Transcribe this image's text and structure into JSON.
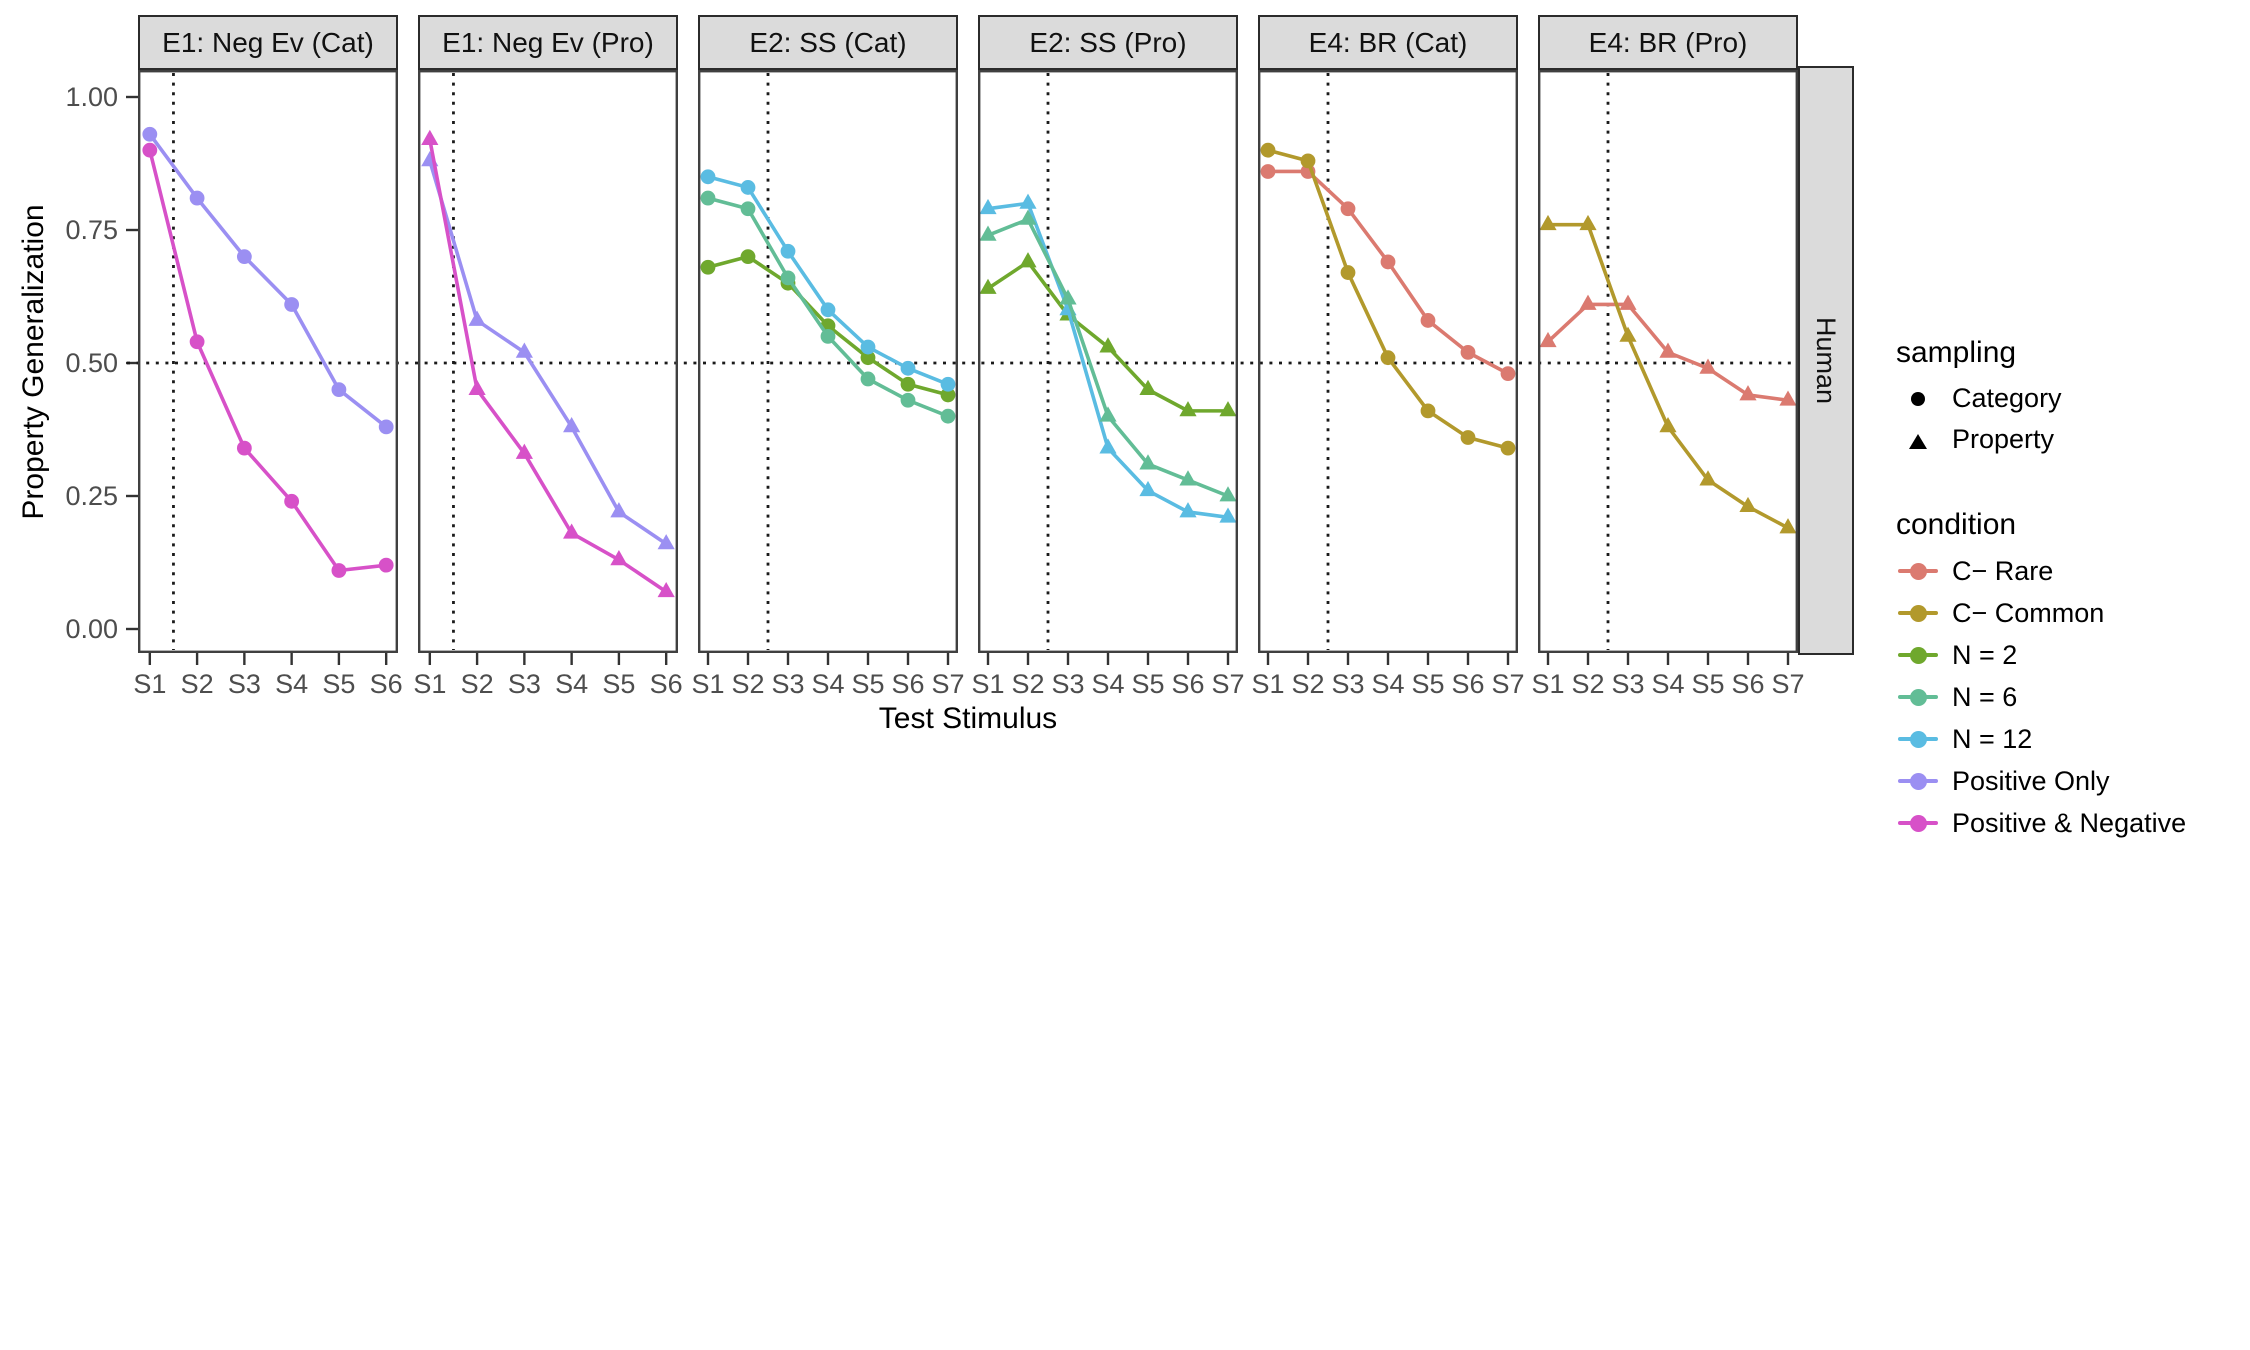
{
  "legend": {
    "sampling": {
      "title": "sampling",
      "items": [
        {
          "label": "Category",
          "marker": "circle"
        },
        {
          "label": "Property",
          "marker": "triangle"
        }
      ]
    },
    "condition": {
      "title": "condition",
      "items": [
        {
          "label": "C− Rare",
          "color": "#DB7A70"
        },
        {
          "label": "C− Common",
          "color": "#B2992C"
        },
        {
          "label": "N = 2",
          "color": "#6FA82D"
        },
        {
          "label": "N = 6",
          "color": "#62BD96"
        },
        {
          "label": "N = 12",
          "color": "#5ABCE2"
        },
        {
          "label": "Positive Only",
          "color": "#9B8FF2"
        },
        {
          "label": "Positive & Negative",
          "color": "#D751C8"
        }
      ]
    }
  },
  "chart_data": {
    "type": "line",
    "xlabel": "Test Stimulus",
    "ylabel": "Property Generalization",
    "facet_row_label": "Human",
    "ylim": [
      0,
      1
    ],
    "yticks": [
      0.0,
      0.25,
      0.5,
      0.75,
      1.0
    ],
    "ytick_labels": [
      "0.00",
      "0.25",
      "0.50",
      "0.75",
      "1.00"
    ],
    "hline": 0.5,
    "grid": false,
    "legend_position": "right",
    "panels": [
      {
        "title": "E1: Neg Ev (Cat)",
        "marker": "circle",
        "categories": [
          "S1",
          "S2",
          "S3",
          "S4",
          "S5",
          "S6"
        ],
        "vline_x": 1.5,
        "series": [
          {
            "condition": "Positive Only",
            "values": [
              0.93,
              0.81,
              0.7,
              0.61,
              0.45,
              0.38
            ]
          },
          {
            "condition": "Positive & Negative",
            "values": [
              0.9,
              0.54,
              0.34,
              0.24,
              0.11,
              0.12
            ]
          }
        ]
      },
      {
        "title": "E1: Neg Ev (Pro)",
        "marker": "triangle",
        "categories": [
          "S1",
          "S2",
          "S3",
          "S4",
          "S5",
          "S6"
        ],
        "vline_x": 1.5,
        "series": [
          {
            "condition": "Positive Only",
            "values": [
              0.88,
              0.58,
              0.52,
              0.38,
              0.22,
              0.16
            ]
          },
          {
            "condition": "Positive & Negative",
            "values": [
              0.92,
              0.45,
              0.33,
              0.18,
              0.13,
              0.07
            ]
          }
        ]
      },
      {
        "title": "E2: SS (Cat)",
        "marker": "circle",
        "categories": [
          "S1",
          "S2",
          "S3",
          "S4",
          "S5",
          "S6",
          "S7"
        ],
        "vline_x": 2.5,
        "series": [
          {
            "condition": "N = 2",
            "values": [
              0.68,
              0.7,
              0.65,
              0.57,
              0.51,
              0.46,
              0.44
            ]
          },
          {
            "condition": "N = 6",
            "values": [
              0.81,
              0.79,
              0.66,
              0.55,
              0.47,
              0.43,
              0.4
            ]
          },
          {
            "condition": "N = 12",
            "values": [
              0.85,
              0.83,
              0.71,
              0.6,
              0.53,
              0.49,
              0.46
            ]
          }
        ]
      },
      {
        "title": "E2: SS (Pro)",
        "marker": "triangle",
        "categories": [
          "S1",
          "S2",
          "S3",
          "S4",
          "S5",
          "S6",
          "S7"
        ],
        "vline_x": 2.5,
        "series": [
          {
            "condition": "N = 2",
            "values": [
              0.64,
              0.69,
              0.59,
              0.53,
              0.45,
              0.41,
              0.41
            ]
          },
          {
            "condition": "N = 12",
            "values": [
              0.79,
              0.8,
              0.6,
              0.34,
              0.26,
              0.22,
              0.21
            ]
          },
          {
            "condition": "N = 6",
            "values": [
              0.74,
              0.77,
              0.62,
              0.4,
              0.31,
              0.28,
              0.25
            ]
          }
        ]
      },
      {
        "title": "E4: BR (Cat)",
        "marker": "circle",
        "categories": [
          "S1",
          "S2",
          "S3",
          "S4",
          "S5",
          "S6",
          "S7"
        ],
        "vline_x": 2.5,
        "series": [
          {
            "condition": "C− Rare",
            "values": [
              0.86,
              0.86,
              0.79,
              0.69,
              0.58,
              0.52,
              0.48
            ]
          },
          {
            "condition": "C− Common",
            "values": [
              0.9,
              0.88,
              0.67,
              0.51,
              0.41,
              0.36,
              0.34
            ]
          }
        ]
      },
      {
        "title": "E4: BR (Pro)",
        "marker": "triangle",
        "categories": [
          "S1",
          "S2",
          "S3",
          "S4",
          "S5",
          "S6",
          "S7"
        ],
        "vline_x": 2.5,
        "series": [
          {
            "condition": "C− Rare",
            "values": [
              0.54,
              0.61,
              0.61,
              0.52,
              0.49,
              0.44,
              0.43
            ]
          },
          {
            "condition": "C− Common",
            "values": [
              0.76,
              0.76,
              0.55,
              0.38,
              0.28,
              0.23,
              0.19
            ]
          }
        ]
      }
    ]
  }
}
